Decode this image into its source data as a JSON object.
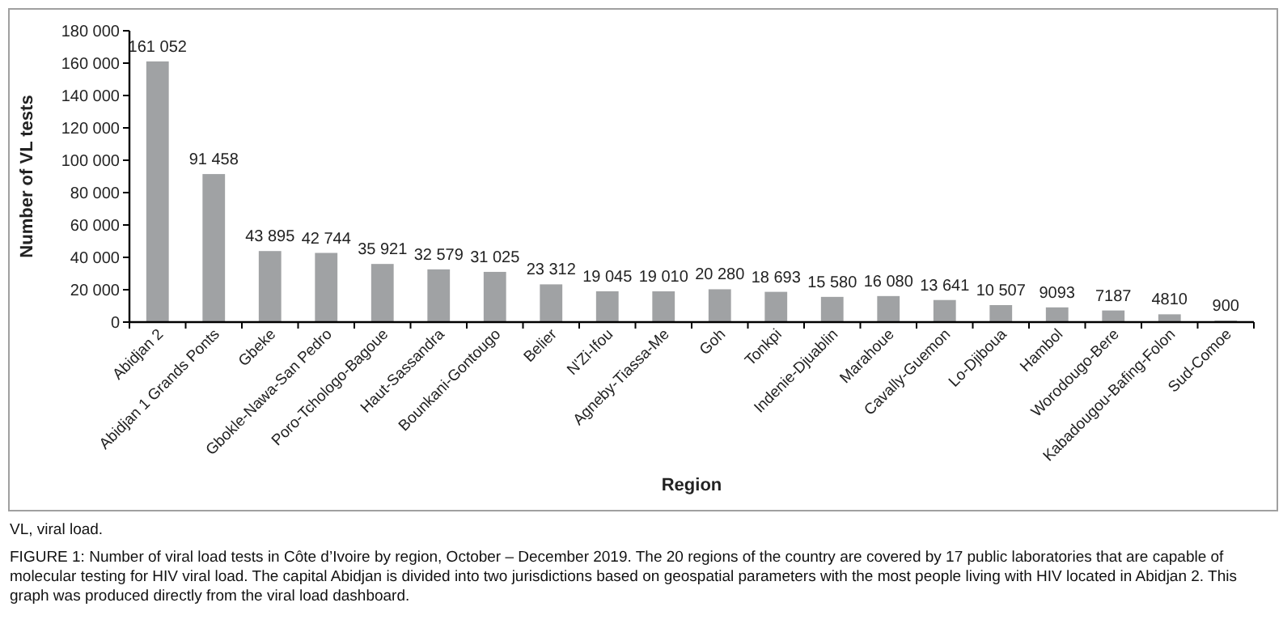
{
  "chart_data": {
    "type": "bar",
    "xlabel": "Region",
    "ylabel": "Number of VL tests",
    "categories": [
      "Abidjan 2",
      "Abidjan 1 Grands Ponts",
      "Gbeke",
      "Gbokle-Nawa-San Pedro",
      "Poro-Tchologo-Bagoue",
      "Haut-Sassandra",
      "Bounkani-Gontougo",
      "Belier",
      "N'Zi-Ifou",
      "Agneby-Tiassa-Me",
      "Goh",
      "Tonkpi",
      "Indenie-Djuablin",
      "Marahoue",
      "Cavally-Guemon",
      "Lo-Djiboua",
      "Hambol",
      "Worodougo-Bere",
      "Kabadougou-Bafing-Folon",
      "Sud-Comoe"
    ],
    "values": [
      161052,
      91458,
      43895,
      42744,
      35921,
      32579,
      31025,
      23312,
      19045,
      19010,
      20280,
      18693,
      15580,
      16080,
      13641,
      10507,
      9093,
      7187,
      4810,
      900
    ],
    "value_labels": [
      "161 052",
      "91 458",
      "43 895",
      "42 744",
      "35 921",
      "32 579",
      "31 025",
      "23 312",
      "19 045",
      "19 010",
      "20 280",
      "18 693",
      "15 580",
      "16 080",
      "13 641",
      "10 507",
      "9093",
      "7187",
      "4810",
      "900"
    ],
    "color": "#a0a2a4",
    "ylim": [
      0,
      180000
    ],
    "yticks": [
      {
        "value": 0,
        "label": "0"
      },
      {
        "value": 20000,
        "label": "20 000"
      },
      {
        "value": 40000,
        "label": "40 000"
      },
      {
        "value": 60000,
        "label": "60 000"
      },
      {
        "value": 80000,
        "label": "80 000"
      },
      {
        "value": 100000,
        "label": "100 000"
      },
      {
        "value": 120000,
        "label": "120 000"
      },
      {
        "value": 140000,
        "label": "140 000"
      },
      {
        "value": 160000,
        "label": "160 000"
      },
      {
        "value": 180000,
        "label": "180 000"
      }
    ],
    "grid": false,
    "annotations": [
      "VL, viral load.",
      "FIGURE 1: Number of viral load tests in Côte d’Ivoire by region, October – December 2019. The 20 regions of the country are covered by 17 public laboratories that are capable of molecular testing for HIV viral load. The capital Abidjan is divided into two jurisdictions based on geospatial parameters with the most people living with HIV located in Abidjan 2. This graph was produced directly from the viral load dashboard."
    ]
  }
}
